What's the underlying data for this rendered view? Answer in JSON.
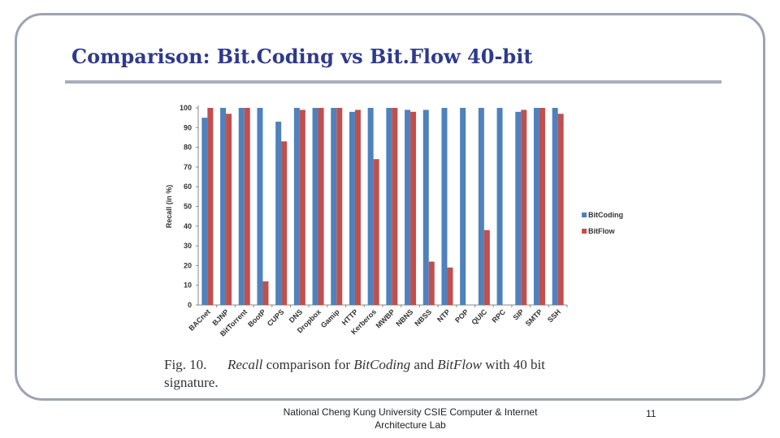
{
  "slide": {
    "title": "Comparison: Bit.Coding vs Bit.Flow 40-bit",
    "footer_line1": "National Cheng Kung University CSIE Computer & Internet",
    "footer_line2": "Architecture Lab",
    "page_number": "11"
  },
  "caption": {
    "fig_label": "Fig. 10.",
    "part1": "Recall",
    "part2": " comparison for ",
    "part3": "BitCoding",
    "part4": " and ",
    "part5": "BitFlow",
    "part6": " with 40 bit",
    "line2": "signature."
  },
  "chart_data": {
    "type": "bar",
    "ylabel": "Recall (in %)",
    "xlabel": "",
    "ylim": [
      0,
      100
    ],
    "yticks": [
      0,
      10,
      20,
      30,
      40,
      50,
      60,
      70,
      80,
      90,
      100
    ],
    "categories": [
      "BACnet",
      "BJNP",
      "BitTorrent",
      "BootP",
      "CUPS",
      "DNS",
      "Dropbox",
      "Gamip",
      "HTTP",
      "Kerberos",
      "MWBP",
      "NBNS",
      "NBSS",
      "NTP",
      "POP",
      "QUIC",
      "RPC",
      "SIP",
      "SMTP",
      "SSH"
    ],
    "series": [
      {
        "name": "BitCoding",
        "color": "#4f81bd",
        "values": [
          95,
          100,
          100,
          100,
          93,
          100,
          100,
          100,
          98,
          100,
          100,
          99,
          99,
          100,
          100,
          100,
          100,
          98,
          100,
          100
        ]
      },
      {
        "name": "BitFlow",
        "color": "#c0504d",
        "values": [
          100,
          97,
          100,
          12,
          83,
          99,
          100,
          100,
          99,
          74,
          100,
          98,
          22,
          19,
          0,
          38,
          0,
          99,
          100,
          97
        ]
      }
    ],
    "legend_position": "right",
    "grid": false
  }
}
